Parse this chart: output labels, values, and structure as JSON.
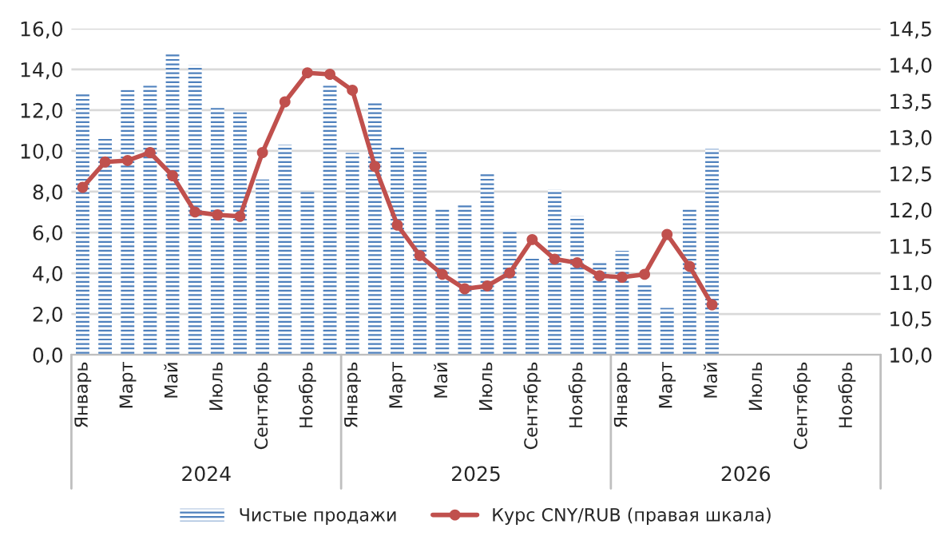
{
  "chart_data": {
    "type": "bar",
    "categories": [
      "Январь",
      null,
      "Март",
      null,
      "Май",
      null,
      "Июль",
      null,
      "Сентябрь",
      null,
      "Ноябрь",
      null,
      "Январь",
      null,
      "Март",
      null,
      "Май",
      null,
      "Июль",
      null,
      "Сентябрь",
      null,
      "Ноябрь",
      null,
      "Январь",
      null,
      "Март",
      null,
      "Май",
      null,
      "Июль",
      null,
      "Сентябрь",
      null,
      "Ноябрь",
      null
    ],
    "series": [
      {
        "name": "Чистые продажи",
        "color": "#4f81bd",
        "values": [
          12.9,
          10.6,
          13.0,
          13.2,
          14.8,
          14.2,
          12.1,
          11.9,
          8.6,
          10.3,
          8.0,
          13.2,
          9.9,
          12.4,
          10.2,
          10.0,
          7.2,
          7.4,
          8.9,
          6.1,
          4.8,
          8.1,
          6.8,
          4.6,
          5.1,
          3.5,
          2.3,
          7.2,
          10.1,
          null,
          null,
          null,
          null,
          null,
          null,
          null
        ]
      },
      {
        "name": "Курс CNY/RUB (правая шкала)",
        "type": "line",
        "axis": "y2",
        "color": "#c0504d",
        "marker": "circle",
        "values": [
          12.31,
          12.66,
          12.68,
          12.79,
          12.47,
          11.97,
          11.93,
          11.91,
          12.79,
          13.49,
          13.89,
          13.87,
          13.65,
          12.6,
          11.79,
          11.37,
          11.11,
          10.91,
          10.95,
          11.13,
          11.59,
          11.32,
          11.27,
          11.09,
          11.07,
          11.11,
          11.66,
          11.22,
          10.69,
          null,
          null,
          null,
          null,
          null,
          null,
          null
        ]
      }
    ],
    "annotations": [
      "2024",
      "2025",
      "2026"
    ],
    "ylim": [
      0,
      16
    ],
    "yticks": [
      {
        "value": 0,
        "label": "0,0"
      },
      {
        "value": 2,
        "label": "2,0"
      },
      {
        "value": 4,
        "label": "4,0"
      },
      {
        "value": 6,
        "label": "6,0"
      },
      {
        "value": 8,
        "label": "8,0"
      },
      {
        "value": 10,
        "label": "10,0"
      },
      {
        "value": 12,
        "label": "12,0"
      },
      {
        "value": 14,
        "label": "14,0"
      },
      {
        "value": 16,
        "label": "16,0"
      }
    ],
    "y2lim": [
      10,
      14.5
    ],
    "y2ticks": [
      {
        "value": 10,
        "label": "10,0"
      },
      {
        "value": 10.5,
        "label": "10,5"
      },
      {
        "value": 11,
        "label": "11,0"
      },
      {
        "value": 11.5,
        "label": "11,5"
      },
      {
        "value": 12,
        "label": "12,0"
      },
      {
        "value": 12.5,
        "label": "12,5"
      },
      {
        "value": 13,
        "label": "13,0"
      },
      {
        "value": 13.5,
        "label": "13,5"
      },
      {
        "value": 14,
        "label": "14,0"
      },
      {
        "value": 14.5,
        "label": "14,5"
      }
    ],
    "grid": "y",
    "legend": "bottom"
  }
}
